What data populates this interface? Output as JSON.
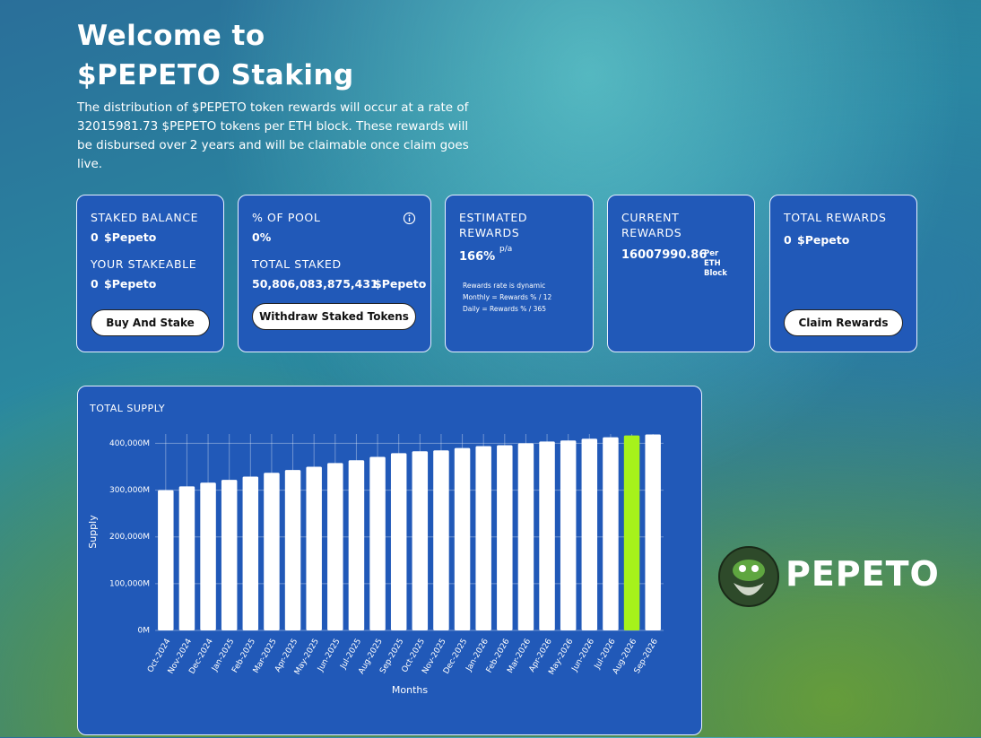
{
  "header": {
    "title": "Welcome to $PEPETO Staking",
    "description": "The distribution of $PEPETO token rewards will occur at a rate of 32015981.73 $PEPETO tokens per ETH block. These rewards will be disbursed over 2 years and will be claimable once claim goes live."
  },
  "cards": [
    {
      "label": "STAKED BALANCE",
      "value": "0",
      "unit": "$Pepeto",
      "label2": "YOUR STAKEABLE",
      "value2": "0",
      "unit2": "$Pepeto",
      "button": "Buy And Stake"
    },
    {
      "label": "% OF POOL",
      "value": "0%",
      "label2": "TOTAL STAKED",
      "value2": "50,806,083,875,431",
      "unit2": "$Pepeto",
      "button": "Withdraw Staked Tokens"
    },
    {
      "label": "ESTIMATED REWARDS",
      "value": "166%",
      "unit": "p/a",
      "notes": [
        "Rewards rate is dynamic",
        "Monthly = Rewards % / 12",
        "Daily = Rewards % / 365"
      ]
    },
    {
      "label": "CURRENT REWARDS",
      "value": "16007990.86",
      "unit": "Per ETH Block"
    },
    {
      "label": "TOTAL REWARDS",
      "value": "0",
      "unit": "$Pepeto",
      "button": "Claim Rewards"
    }
  ],
  "chart_data": {
    "type": "bar",
    "title": "TOTAL SUPPLY",
    "y_label": "Supply",
    "x_label": "Months",
    "categories": [
      "Oct-2024",
      "Nov-2024",
      "Dec-2024",
      "Jan-2025",
      "Feb-2025",
      "Mar-2025",
      "Apr-2025",
      "May-2025",
      "Jun-2025",
      "Jul-2025",
      "Aug-2025",
      "Sep-2025",
      "Oct-2025",
      "Nov-2025",
      "Dec-2025",
      "Jan-2026",
      "Feb-2026",
      "Mar-2026",
      "Apr-2026",
      "May-2026",
      "Jun-2026",
      "Jul-2026",
      "Aug-2026",
      "Sep-2026"
    ],
    "values": [
      300000,
      308000,
      316000,
      322000,
      329000,
      337000,
      343000,
      350000,
      358000,
      364000,
      371000,
      379000,
      383000,
      385000,
      390000,
      394000,
      396000,
      400000,
      404000,
      406000,
      410000,
      413000,
      417000,
      419000
    ],
    "colors": [
      "#ffffff",
      "#ffffff",
      "#ffffff",
      "#ffffff",
      "#ffffff",
      "#ffffff",
      "#ffffff",
      "#ffffff",
      "#ffffff",
      "#ffffff",
      "#ffffff",
      "#ffffff",
      "#ffffff",
      "#ffffff",
      "#ffffff",
      "#ffffff",
      "#ffffff",
      "#ffffff",
      "#ffffff",
      "#ffffff",
      "#ffffff",
      "#ffffff",
      "#a6f21b",
      "#ffffff"
    ],
    "ylim": [
      0,
      420000
    ],
    "yticks": [
      {
        "value": 0,
        "label": "0M"
      },
      {
        "value": 100000,
        "label": "100,000M"
      },
      {
        "value": 200000,
        "label": "200,000M"
      },
      {
        "value": 300000,
        "label": "300,000M"
      },
      {
        "value": 400000,
        "label": "400,000M"
      }
    ],
    "grid": true
  },
  "brand": "PEPETO"
}
